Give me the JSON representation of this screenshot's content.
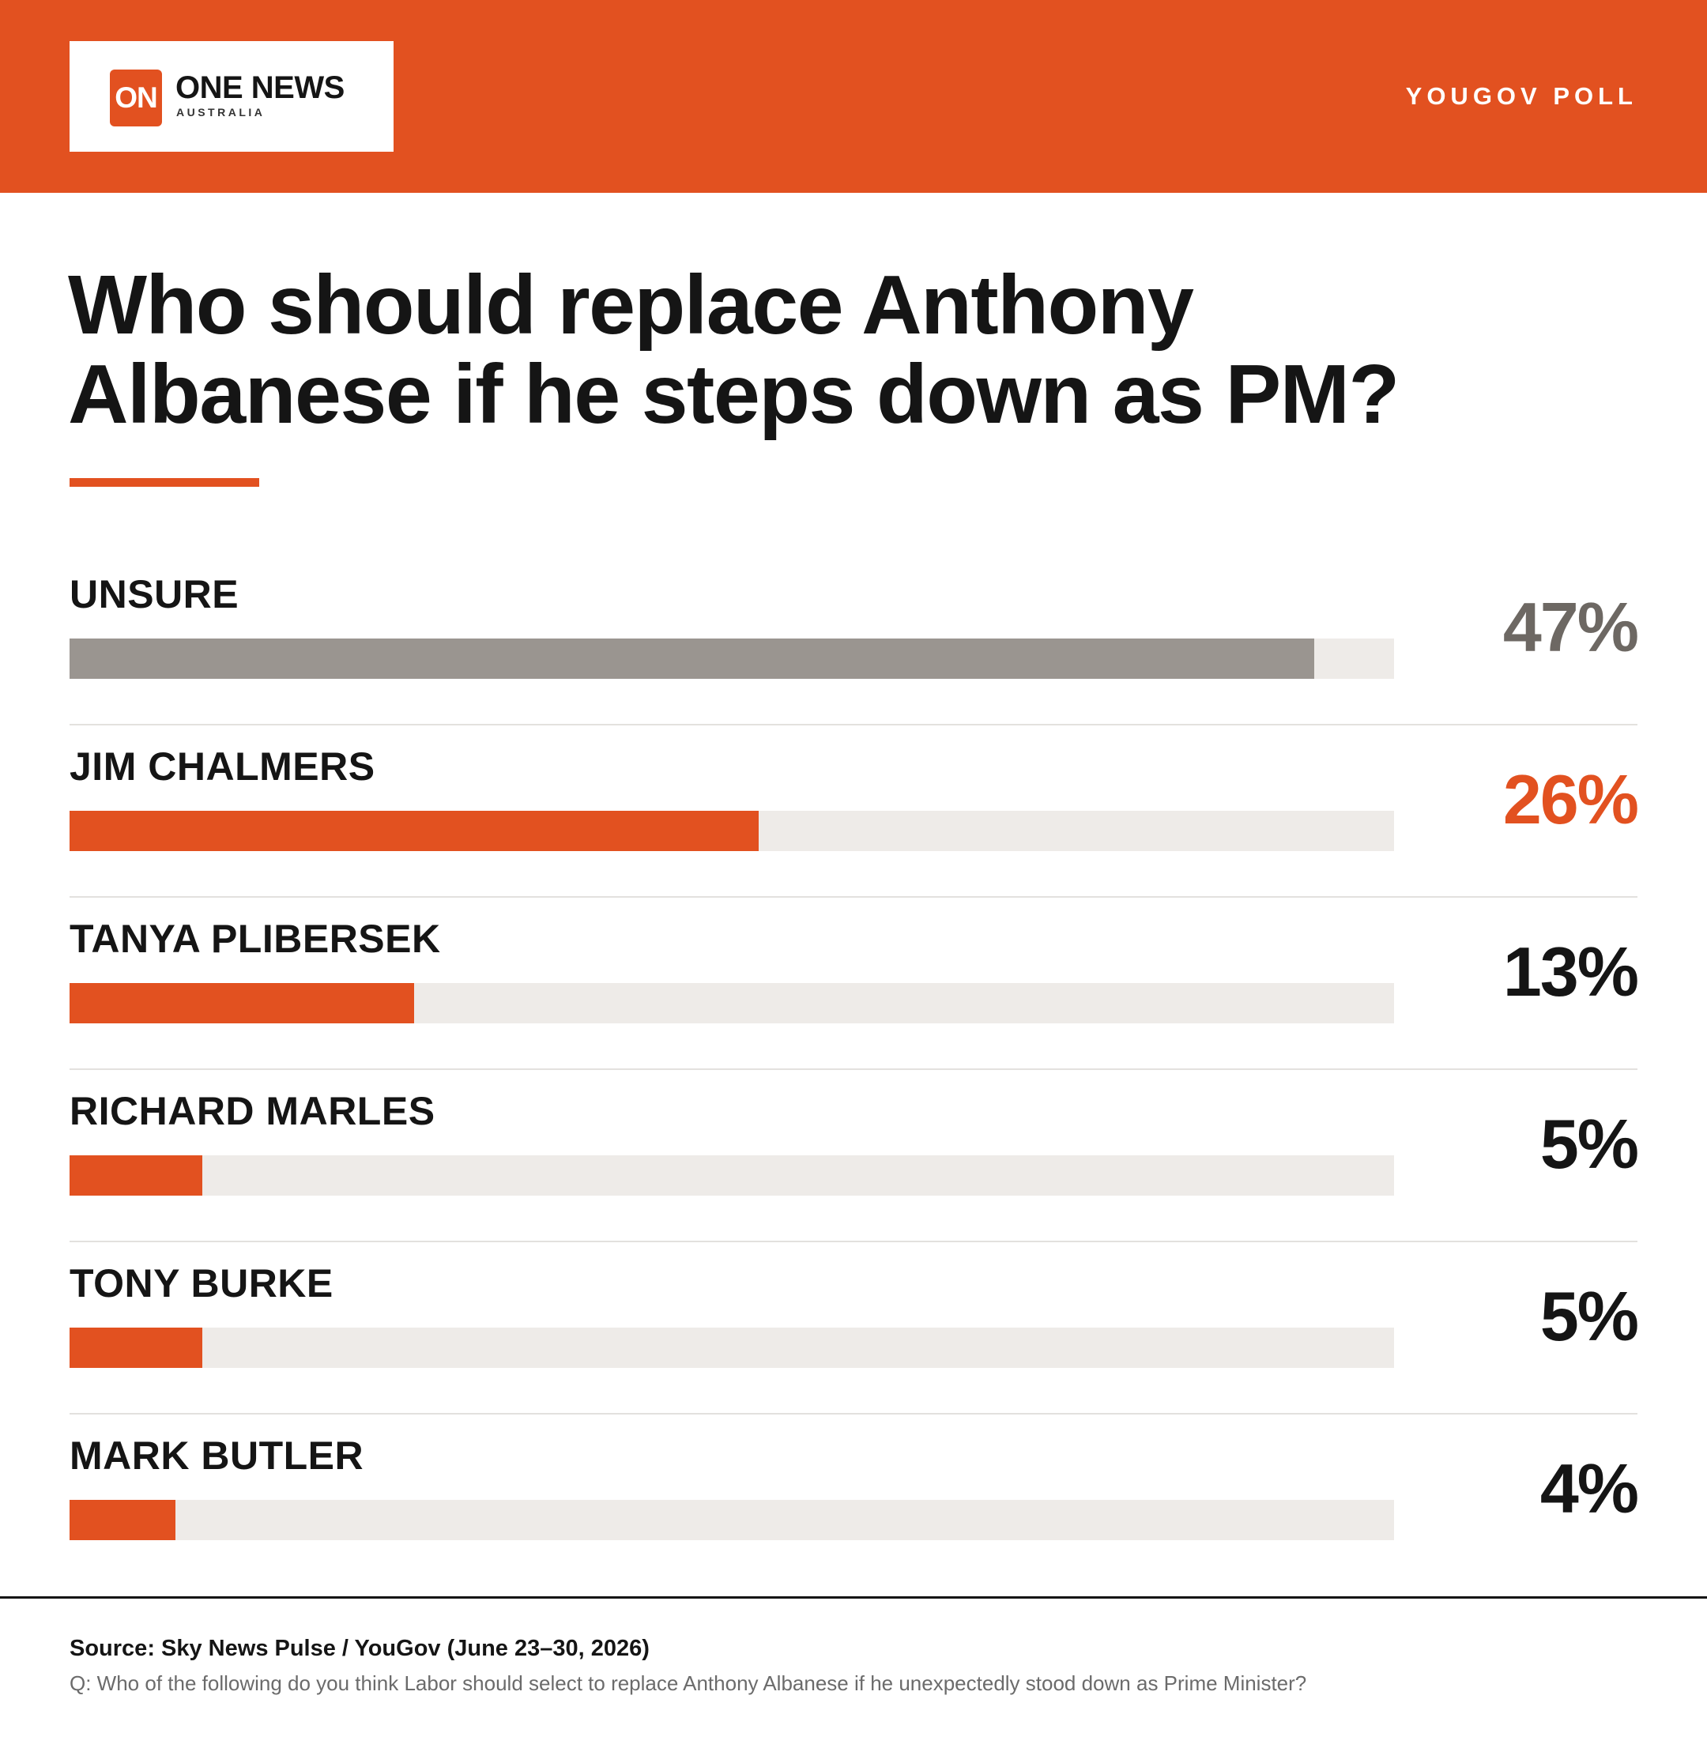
{
  "colors": {
    "brand": "#e25120",
    "unsure": "#9a9590",
    "track": "#eeebe8",
    "text": "#151515",
    "muted_pct": "#6d6863"
  },
  "header": {
    "logo_mark": "ON",
    "logo_name": "ONE NEWS",
    "logo_sub": "AUSTRALIA",
    "poll_tag": "YOUGOV POLL"
  },
  "footer": {
    "source": "Source: Sky News Pulse / YouGov (June 23–30, 2026)",
    "question": "Q: Who of the following do you think Labor should select to replace Anthony Albanese if he unexpectedly stood down as Prime Minister?"
  },
  "chart_data": {
    "type": "bar",
    "orientation": "horizontal",
    "title": "Who should replace Anthony Albanese if he steps down as PM?",
    "xlim": [
      0,
      50
    ],
    "unit": "%",
    "grid": false,
    "categories": [
      "UNSURE",
      "JIM CHALMERS",
      "TANYA PLIBERSEK",
      "RICHARD MARLES",
      "TONY BURKE",
      "MARK BUTLER"
    ],
    "values": [
      47,
      26,
      13,
      5,
      5,
      4
    ],
    "value_labels": [
      "47%",
      "26%",
      "13%",
      "5%",
      "5%",
      "4%"
    ],
    "bar_colors": [
      "#9a9590",
      "#e25120",
      "#e25120",
      "#e25120",
      "#e25120",
      "#e25120"
    ],
    "label_colors": [
      "#6d6863",
      "#e25120",
      "#151515",
      "#151515",
      "#151515",
      "#151515"
    ]
  }
}
